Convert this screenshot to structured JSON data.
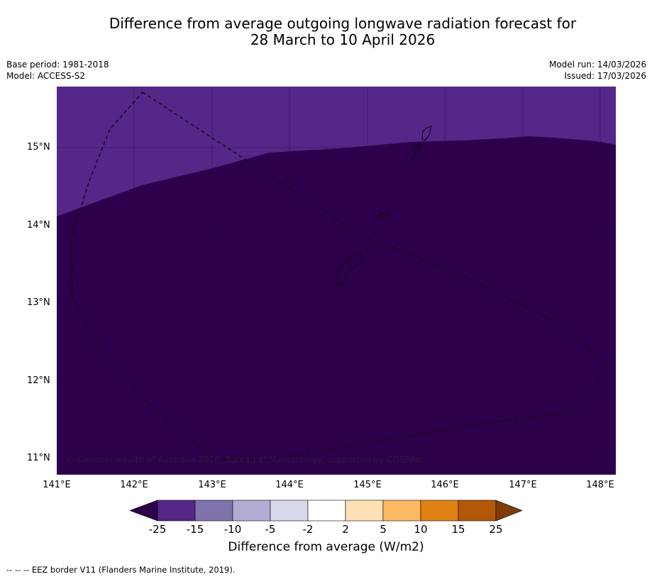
{
  "title_line1": "Difference from average outgoing longwave radiation forecast for",
  "title_line2": "28 March to 10 April 2026",
  "meta": {
    "base_period": "Base period: 1981-2018",
    "model": "Model: ACCESS-S2",
    "model_run": "Model run: 14/03/2026",
    "issued": "Issued: 17/03/2026"
  },
  "map": {
    "lat_labels": [
      "15°N",
      "14°N",
      "13°N",
      "12°N",
      "11°N"
    ],
    "lon_labels": [
      "141°E",
      "142°E",
      "143°E",
      "144°E",
      "145°E",
      "146°E",
      "147°E",
      "148°E"
    ],
    "copyright": "© Commonwealth of Australia 2026, Bureau of Meteorology, supported by COSPPac",
    "regions": [
      {
        "category": "-25 to -15",
        "color": "#542788"
      },
      {
        "category": "< -25",
        "color": "#2d004b"
      }
    ]
  },
  "colorbar": {
    "ticks": [
      "-25",
      "-15",
      "-10",
      "-5",
      "-2",
      "2",
      "5",
      "10",
      "15",
      "25"
    ],
    "colors": [
      "#2d004b",
      "#542788",
      "#8073ac",
      "#b2abd2",
      "#d8daeb",
      "#ffffff",
      "#fee0b6",
      "#fdb863",
      "#e08214",
      "#b35806",
      "#7f3b08"
    ],
    "label": "Difference from average (W/m2)"
  },
  "footer": "--  --  -- EEZ border V11 (Flanders Marine Institute, 2019)."
}
